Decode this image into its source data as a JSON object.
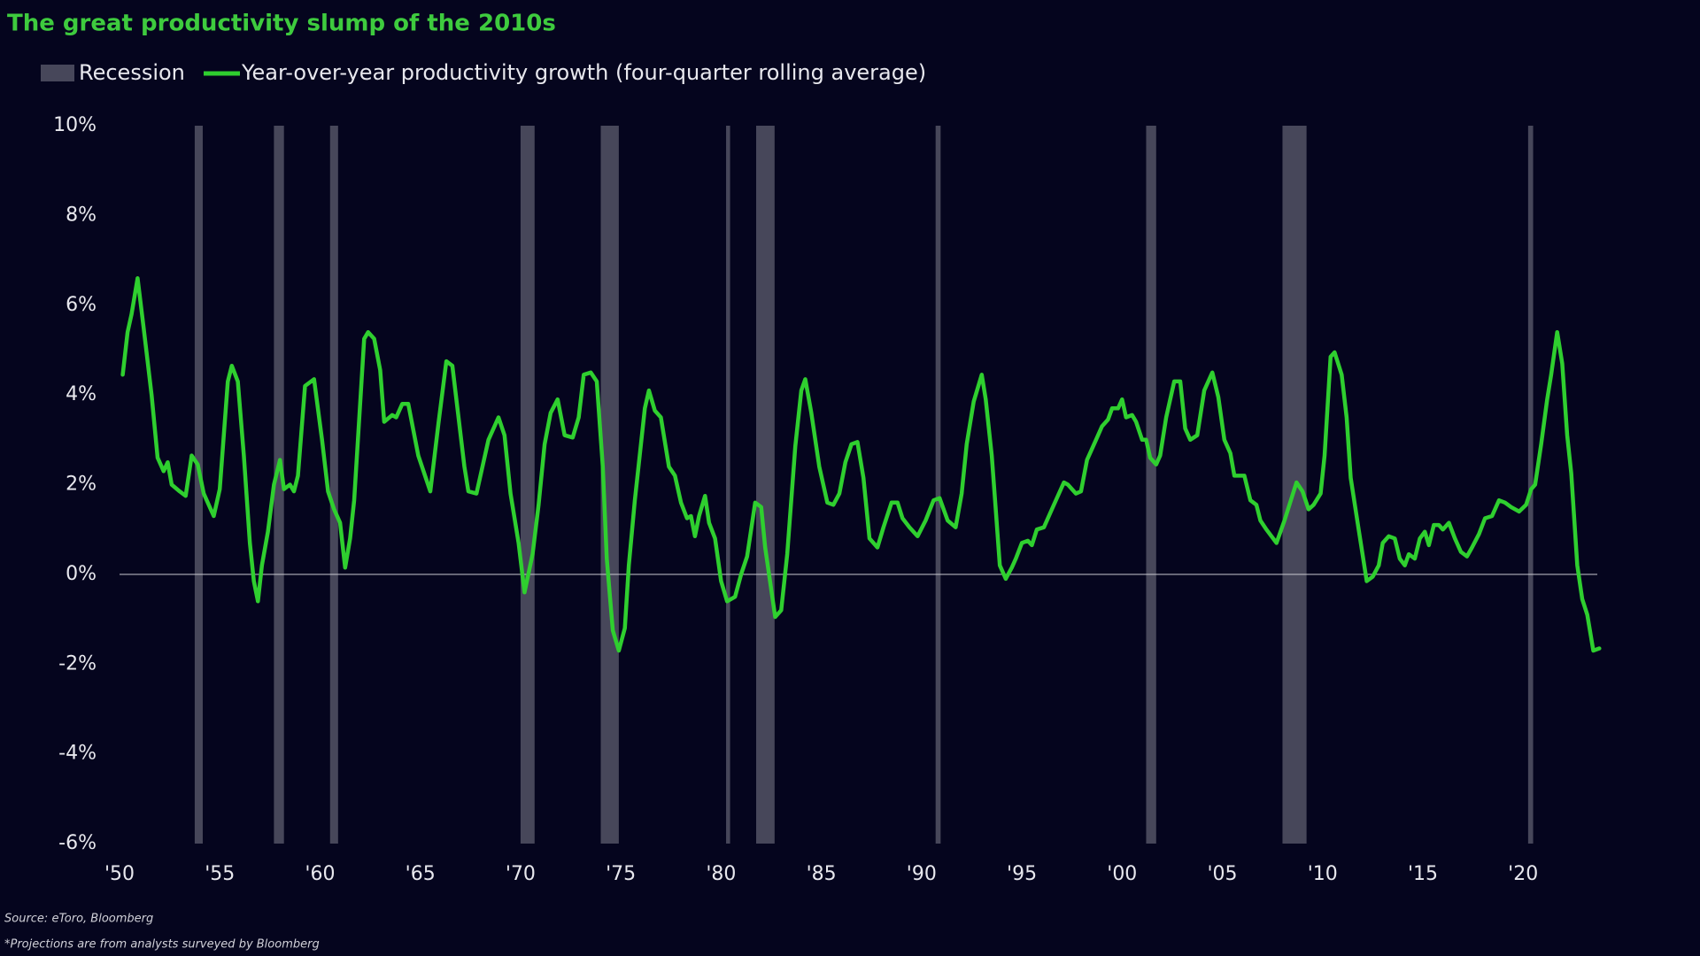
{
  "chart_data": {
    "type": "line",
    "title": "The great productivity slump of the 2010s",
    "source": "Source: eToro, Bloomberg",
    "note": "*Projections are from analysts surveyed by Bloomberg",
    "background": "#05051e",
    "xlim": [
      1950,
      2023.7
    ],
    "ylim": [
      -6,
      10
    ],
    "xticks": [
      {
        "value": 1950,
        "label": "'50"
      },
      {
        "value": 1955,
        "label": "'55"
      },
      {
        "value": 1960,
        "label": "'60"
      },
      {
        "value": 1965,
        "label": "'65"
      },
      {
        "value": 1970,
        "label": "'70"
      },
      {
        "value": 1975,
        "label": "'75"
      },
      {
        "value": 1980,
        "label": "'80"
      },
      {
        "value": 1985,
        "label": "'85"
      },
      {
        "value": 1990,
        "label": "'90"
      },
      {
        "value": 1995,
        "label": "'95"
      },
      {
        "value": 2000,
        "label": "'00"
      },
      {
        "value": 2005,
        "label": "'05"
      },
      {
        "value": 2010,
        "label": "'10"
      },
      {
        "value": 2015,
        "label": "'15"
      },
      {
        "value": 2020,
        "label": "'20"
      }
    ],
    "yticks": [
      {
        "value": -6,
        "label": "-6%"
      },
      {
        "value": -4,
        "label": "-4%"
      },
      {
        "value": -2,
        "label": "-2%"
      },
      {
        "value": 0,
        "label": "0%"
      },
      {
        "value": 2,
        "label": "2%"
      },
      {
        "value": 4,
        "label": "4%"
      },
      {
        "value": 6,
        "label": "6%"
      },
      {
        "value": 8,
        "label": "8%"
      },
      {
        "value": 10,
        "label": "10%"
      }
    ],
    "recessions": {
      "name": "Recession",
      "color": "#47475a",
      "periods": [
        [
          1953.75,
          1954.15
        ],
        [
          1957.7,
          1958.2
        ],
        [
          1960.5,
          1960.9
        ],
        [
          1970.0,
          1970.7
        ],
        [
          1974.0,
          1974.9
        ],
        [
          1980.25,
          1980.45
        ],
        [
          1981.75,
          1982.67
        ],
        [
          1990.7,
          1990.95
        ],
        [
          2001.2,
          2001.7
        ],
        [
          2008.0,
          2009.2
        ],
        [
          2020.25,
          2020.5
        ]
      ]
    },
    "series": [
      {
        "name": "Year-over-year productivity growth (four-quarter rolling average)",
        "color": "#2fcf2f",
        "x": [
          1950.16,
          1950.4,
          1950.6,
          1950.9,
          1951.2,
          1951.6,
          1951.9,
          1952.2,
          1952.4,
          1952.6,
          1953.0,
          1953.3,
          1953.6,
          1953.9,
          1954.2,
          1954.7,
          1955.0,
          1955.4,
          1955.6,
          1955.9,
          1956.2,
          1956.5,
          1956.7,
          1956.9,
          1957.1,
          1957.4,
          1957.7,
          1958.0,
          1958.2,
          1958.5,
          1958.7,
          1958.9,
          1959.25,
          1959.7,
          1960.1,
          1960.4,
          1960.7,
          1961.0,
          1961.25,
          1961.5,
          1961.7,
          1962.2,
          1962.4,
          1962.7,
          1963.0,
          1963.2,
          1963.6,
          1963.8,
          1964.1,
          1964.4,
          1964.9,
          1965.5,
          1965.9,
          1966.3,
          1966.6,
          1967.2,
          1967.4,
          1967.8,
          1968.4,
          1968.9,
          1969.2,
          1969.5,
          1969.9,
          1970.2,
          1970.6,
          1970.9,
          1971.2,
          1971.5,
          1971.85,
          1972.2,
          1972.6,
          1972.9,
          1973.15,
          1973.5,
          1973.8,
          1974.1,
          1974.3,
          1974.6,
          1974.9,
          1975.2,
          1975.4,
          1975.7,
          1976.2,
          1976.4,
          1976.7,
          1977.0,
          1977.4,
          1977.7,
          1978.0,
          1978.3,
          1978.5,
          1978.7,
          1978.9,
          1979.2,
          1979.4,
          1979.7,
          1980.0,
          1980.3,
          1980.7,
          1981.0,
          1981.3,
          1981.7,
          1982.0,
          1982.2,
          1982.7,
          1983.0,
          1983.3,
          1983.7,
          1984.0,
          1984.2,
          1984.5,
          1984.9,
          1985.3,
          1985.6,
          1985.9,
          1986.2,
          1986.5,
          1986.8,
          1987.1,
          1987.4,
          1987.8,
          1988.1,
          1988.5,
          1988.8,
          1989.05,
          1989.4,
          1989.8,
          1990.2,
          1990.6,
          1990.9,
          1991.3,
          1991.7,
          1992.0,
          1992.25,
          1992.6,
          1993.0,
          1993.2,
          1993.5,
          1993.7,
          1993.9,
          1994.2,
          1994.5,
          1994.7,
          1995.0,
          1995.3,
          1995.5,
          1995.75,
          1996.1,
          1996.5,
          1997.1,
          1997.3,
          1997.7,
          1997.95,
          1998.25,
          1998.7,
          1999.0,
          1999.3,
          1999.5,
          1999.8,
          2000.0,
          2000.2,
          2000.5,
          2000.7,
          2001.0,
          2001.2,
          2001.4,
          2001.7,
          2001.9,
          2002.2,
          2002.6,
          2002.9,
          2003.15,
          2003.4,
          2003.75,
          2004.1,
          2004.5,
          2004.8,
          2005.1,
          2005.4,
          2005.6,
          2005.9,
          2006.1,
          2006.4,
          2006.7,
          2006.9,
          2007.2,
          2007.7,
          2008.1,
          2008.7,
          2009.0,
          2009.3,
          2009.55,
          2009.9,
          2010.1,
          2010.4,
          2010.6,
          2010.95,
          2011.2,
          2011.4,
          2011.8,
          2012.2,
          2012.5,
          2012.8,
          2013.0,
          2013.3,
          2013.6,
          2013.85,
          2014.1,
          2014.3,
          2014.6,
          2014.85,
          2015.1,
          2015.3,
          2015.55,
          2015.8,
          2016.0,
          2016.3,
          2016.6,
          2016.9,
          2017.2,
          2017.45,
          2017.8,
          2018.1,
          2018.45,
          2018.8,
          2019.1,
          2019.4,
          2019.8,
          2020.15,
          2020.4,
          2020.6,
          2020.9,
          2021.2,
          2021.4,
          2021.7,
          2021.95,
          2022.2,
          2022.4,
          2022.7,
          2022.95,
          2023.2,
          2023.5,
          2023.8
        ],
        "values": [
          4.45,
          5.4,
          5.8,
          6.6,
          5.5,
          4.0,
          2.6,
          2.3,
          2.5,
          2.0,
          1.85,
          1.75,
          2.65,
          2.45,
          1.8,
          1.3,
          1.9,
          4.3,
          4.65,
          4.3,
          2.65,
          0.7,
          -0.15,
          -0.6,
          0.2,
          0.95,
          2.0,
          2.55,
          1.9,
          2.0,
          1.85,
          2.2,
          4.2,
          4.35,
          3.0,
          1.85,
          1.45,
          1.15,
          0.15,
          0.8,
          1.65,
          5.25,
          5.4,
          5.25,
          4.55,
          3.4,
          3.55,
          3.5,
          3.8,
          3.8,
          2.65,
          1.85,
          3.35,
          4.75,
          4.65,
          2.4,
          1.85,
          1.8,
          3.0,
          3.5,
          3.1,
          1.8,
          0.7,
          -0.4,
          0.45,
          1.55,
          2.9,
          3.6,
          3.9,
          3.1,
          3.05,
          3.5,
          4.45,
          4.5,
          4.3,
          2.4,
          0.35,
          -1.25,
          -1.7,
          -1.2,
          0.2,
          1.65,
          3.7,
          4.1,
          3.65,
          3.5,
          2.4,
          2.2,
          1.6,
          1.25,
          1.3,
          0.85,
          1.3,
          1.75,
          1.15,
          0.8,
          -0.15,
          -0.6,
          -0.5,
          0.0,
          0.4,
          1.6,
          1.5,
          0.6,
          -0.95,
          -0.8,
          0.45,
          2.85,
          4.1,
          4.35,
          3.6,
          2.4,
          1.6,
          1.55,
          1.8,
          2.5,
          2.9,
          2.95,
          2.15,
          0.8,
          0.6,
          1.05,
          1.6,
          1.6,
          1.25,
          1.05,
          0.85,
          1.2,
          1.65,
          1.7,
          1.2,
          1.05,
          1.8,
          2.9,
          3.85,
          4.45,
          3.9,
          2.65,
          1.45,
          0.2,
          -0.1,
          0.15,
          0.35,
          0.7,
          0.75,
          0.65,
          1.0,
          1.05,
          1.45,
          2.05,
          2.0,
          1.8,
          1.85,
          2.55,
          3.0,
          3.3,
          3.45,
          3.7,
          3.7,
          3.9,
          3.5,
          3.55,
          3.4,
          3.0,
          3.0,
          2.6,
          2.45,
          2.65,
          3.5,
          4.3,
          4.3,
          3.25,
          3.0,
          3.1,
          4.1,
          4.5,
          3.95,
          3.0,
          2.7,
          2.2,
          2.2,
          2.2,
          1.65,
          1.55,
          1.2,
          1.0,
          0.7,
          1.2,
          2.05,
          1.85,
          1.45,
          1.55,
          1.8,
          2.65,
          4.85,
          4.95,
          4.45,
          3.5,
          2.15,
          1.0,
          -0.15,
          -0.05,
          0.2,
          0.7,
          0.85,
          0.8,
          0.35,
          0.2,
          0.45,
          0.35,
          0.8,
          0.95,
          0.65,
          1.1,
          1.1,
          1.0,
          1.15,
          0.8,
          0.5,
          0.4,
          0.6,
          0.9,
          1.25,
          1.3,
          1.65,
          1.6,
          1.5,
          1.4,
          1.55,
          1.9,
          2.0,
          2.9,
          3.9,
          4.45,
          5.4,
          4.7,
          3.1,
          2.25,
          0.2,
          -0.55,
          -0.9,
          -1.7,
          -1.65
        ]
      }
    ]
  }
}
